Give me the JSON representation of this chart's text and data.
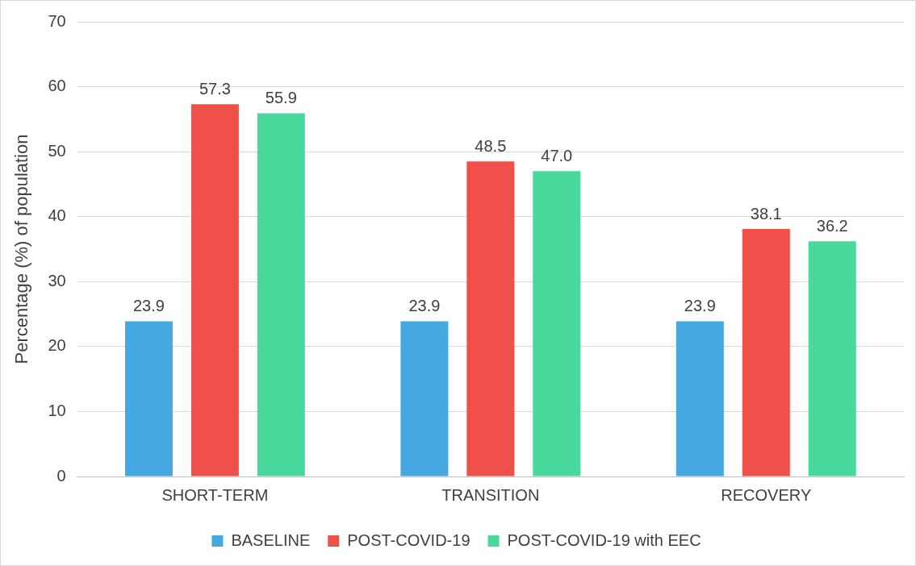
{
  "chart_data": {
    "type": "bar",
    "ylabel": "Percentage (%) of population",
    "categories": [
      "SHORT-TERM",
      "TRANSITION",
      "RECOVERY"
    ],
    "series": [
      {
        "name": "BASELINE",
        "color": "#45a8e0",
        "values": [
          23.9,
          23.9,
          23.9
        ],
        "value_labels": [
          "23.9",
          "23.9",
          "23.9"
        ]
      },
      {
        "name": "POST-COVID-19",
        "color": "#f0504a",
        "values": [
          57.3,
          48.5,
          38.1
        ],
        "value_labels": [
          "57.3",
          "48.5",
          "38.1"
        ]
      },
      {
        "name": "POST-COVID-19 with EEC",
        "color": "#4ad99c",
        "values": [
          55.9,
          47.0,
          36.2
        ],
        "value_labels": [
          "55.9",
          "47.0",
          "36.2"
        ]
      }
    ],
    "ylim": [
      0,
      70
    ],
    "yticks": [
      0,
      10,
      20,
      30,
      40,
      50,
      60,
      70
    ],
    "grid": "y",
    "legend": "bottom"
  }
}
